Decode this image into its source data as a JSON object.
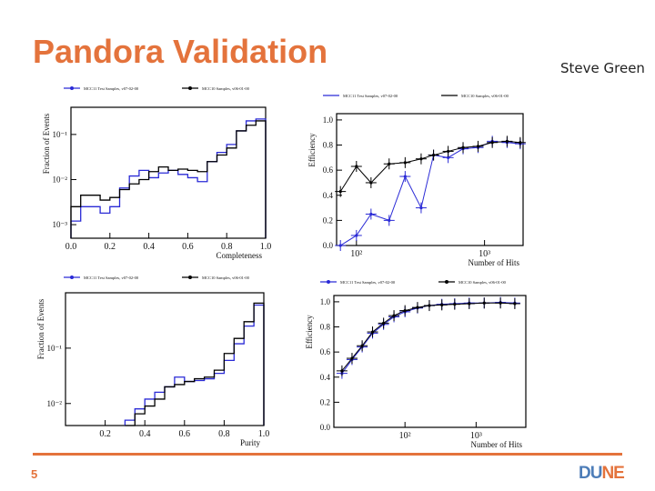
{
  "slide": {
    "title": "Pandora Validation",
    "author": "Steve Green",
    "page_number": "5",
    "logo_left": "DU",
    "logo_right": "NE"
  },
  "colors": {
    "accent": "#e4733c",
    "blue": "#2a2ad6",
    "black": "#000000",
    "logo_blue": "#4d7db8"
  },
  "chart_data": [
    {
      "type": "line",
      "subtype": "histogram",
      "legend": [
        "MCC11 Test Samples, v07-02-00",
        "MCC10 Samples, v06-01-00"
      ],
      "xlabel": "Completeness",
      "ylabel": "Fraction of Events",
      "xlim": [
        0,
        1
      ],
      "ylim": [
        0.0005,
        0.4
      ],
      "yscale": "log",
      "x_ticks": [
        "0.0",
        "0.2",
        "0.4",
        "0.6",
        "0.8",
        "1.0"
      ],
      "y_ticks": [
        "10⁻³",
        "10⁻²",
        "10⁻¹"
      ],
      "bin_edges": [
        0,
        0.05,
        0.1,
        0.15,
        0.2,
        0.25,
        0.3,
        0.35,
        0.4,
        0.45,
        0.5,
        0.55,
        0.6,
        0.65,
        0.7,
        0.75,
        0.8,
        0.85,
        0.9,
        0.95,
        1.0
      ],
      "series": [
        {
          "name": "MCC11 Test Samples, v07-02-00",
          "color": "blue",
          "values": [
            0.0012,
            0.0025,
            0.0025,
            0.0018,
            0.0025,
            0.0065,
            0.012,
            0.016,
            0.011,
            0.014,
            0.016,
            0.013,
            0.011,
            0.009,
            0.025,
            0.04,
            0.06,
            0.12,
            0.2,
            0.22
          ]
        },
        {
          "name": "MCC10 Samples, v06-01-00",
          "color": "black",
          "values": [
            0.0025,
            0.0045,
            0.0045,
            0.0035,
            0.004,
            0.006,
            0.008,
            0.01,
            0.015,
            0.019,
            0.016,
            0.017,
            0.016,
            0.015,
            0.025,
            0.035,
            0.05,
            0.12,
            0.16,
            0.2
          ]
        }
      ]
    },
    {
      "type": "line",
      "legend": [
        "MCC11 Test Samples, v07-02-00",
        "MCC10 Samples, v06-01-00"
      ],
      "xlabel": "Number of Hits",
      "ylabel": "Efficiency",
      "xlim": [
        70,
        2000
      ],
      "ylim": [
        0,
        1.05
      ],
      "xscale": "log",
      "x_ticks": [
        "10²",
        "10³"
      ],
      "y_ticks": [
        "0.0",
        "0.2",
        "0.4",
        "0.6",
        "0.8",
        "1.0"
      ],
      "series": [
        {
          "name": "MCC11 Test Samples, v07-02-00",
          "color": "blue",
          "x": [
            75,
            100,
            130,
            180,
            240,
            320,
            400,
            520,
            680,
            890,
            1150,
            1500,
            1900
          ],
          "y": [
            0.0,
            0.08,
            0.25,
            0.2,
            0.55,
            0.3,
            0.72,
            0.7,
            0.77,
            0.78,
            0.83,
            0.82,
            0.81
          ]
        },
        {
          "name": "MCC10 Samples, v06-01-00",
          "color": "black",
          "x": [
            75,
            100,
            130,
            180,
            240,
            320,
            400,
            520,
            680,
            890,
            1150,
            1500,
            1900
          ],
          "y": [
            0.43,
            0.63,
            0.5,
            0.65,
            0.66,
            0.69,
            0.72,
            0.75,
            0.78,
            0.79,
            0.82,
            0.83,
            0.82
          ]
        }
      ]
    },
    {
      "type": "line",
      "subtype": "histogram",
      "legend": [
        "MCC11 Test Samples, v07-02-00",
        "MCC10 Samples, v06-01-00"
      ],
      "xlabel": "Purity",
      "ylabel": "Fraction of Events",
      "xlim": [
        0,
        1
      ],
      "ylim": [
        0.004,
        1
      ],
      "yscale": "log",
      "x_ticks": [
        "0.2",
        "0.4",
        "0.6",
        "0.8",
        "1.0"
      ],
      "y_ticks": [
        "10⁻²",
        "10⁻¹"
      ],
      "bin_edges": [
        0.3,
        0.35,
        0.4,
        0.45,
        0.5,
        0.55,
        0.6,
        0.65,
        0.7,
        0.75,
        0.8,
        0.85,
        0.9,
        0.95,
        1.0
      ],
      "series": [
        {
          "name": "MCC11 Test Samples, v07-02-00",
          "color": "blue",
          "values": [
            0.005,
            0.008,
            0.012,
            0.016,
            0.02,
            0.03,
            0.025,
            0.026,
            0.028,
            0.035,
            0.06,
            0.12,
            0.25,
            0.6
          ]
        },
        {
          "name": "MCC10 Samples, v06-01-00",
          "color": "black",
          "values": [
            0.004,
            0.0065,
            0.009,
            0.012,
            0.02,
            0.022,
            0.025,
            0.028,
            0.03,
            0.04,
            0.08,
            0.15,
            0.3,
            0.65
          ]
        }
      ]
    },
    {
      "type": "line",
      "legend": [
        "MCC11 Test Samples, v07-02-00",
        "MCC10 Samples, v06-01-00"
      ],
      "xlabel": "Number of Hits",
      "ylabel": "Efficiency",
      "xlim": [
        10,
        5000
      ],
      "ylim": [
        0,
        1.05
      ],
      "xscale": "log",
      "x_ticks": [
        "10²",
        "10³"
      ],
      "y_ticks": [
        "0.0",
        "0.2",
        "0.4",
        "0.6",
        "0.8",
        "1.0"
      ],
      "series": [
        {
          "name": "MCC11 Test Samples, v07-02-00",
          "color": "blue",
          "x": [
            13,
            18,
            25,
            35,
            50,
            70,
            100,
            150,
            220,
            330,
            500,
            800,
            1300,
            2200,
            3500
          ],
          "y": [
            0.43,
            0.54,
            0.64,
            0.75,
            0.82,
            0.88,
            0.92,
            0.95,
            0.97,
            0.98,
            0.985,
            0.99,
            0.99,
            0.995,
            0.99
          ]
        },
        {
          "name": "MCC10 Samples, v06-01-00",
          "color": "black",
          "x": [
            13,
            18,
            25,
            35,
            50,
            70,
            100,
            150,
            220,
            330,
            500,
            800,
            1300,
            2200,
            3500
          ],
          "y": [
            0.45,
            0.55,
            0.65,
            0.76,
            0.83,
            0.89,
            0.93,
            0.955,
            0.97,
            0.975,
            0.98,
            0.985,
            0.99,
            0.99,
            0.985
          ]
        }
      ]
    }
  ]
}
